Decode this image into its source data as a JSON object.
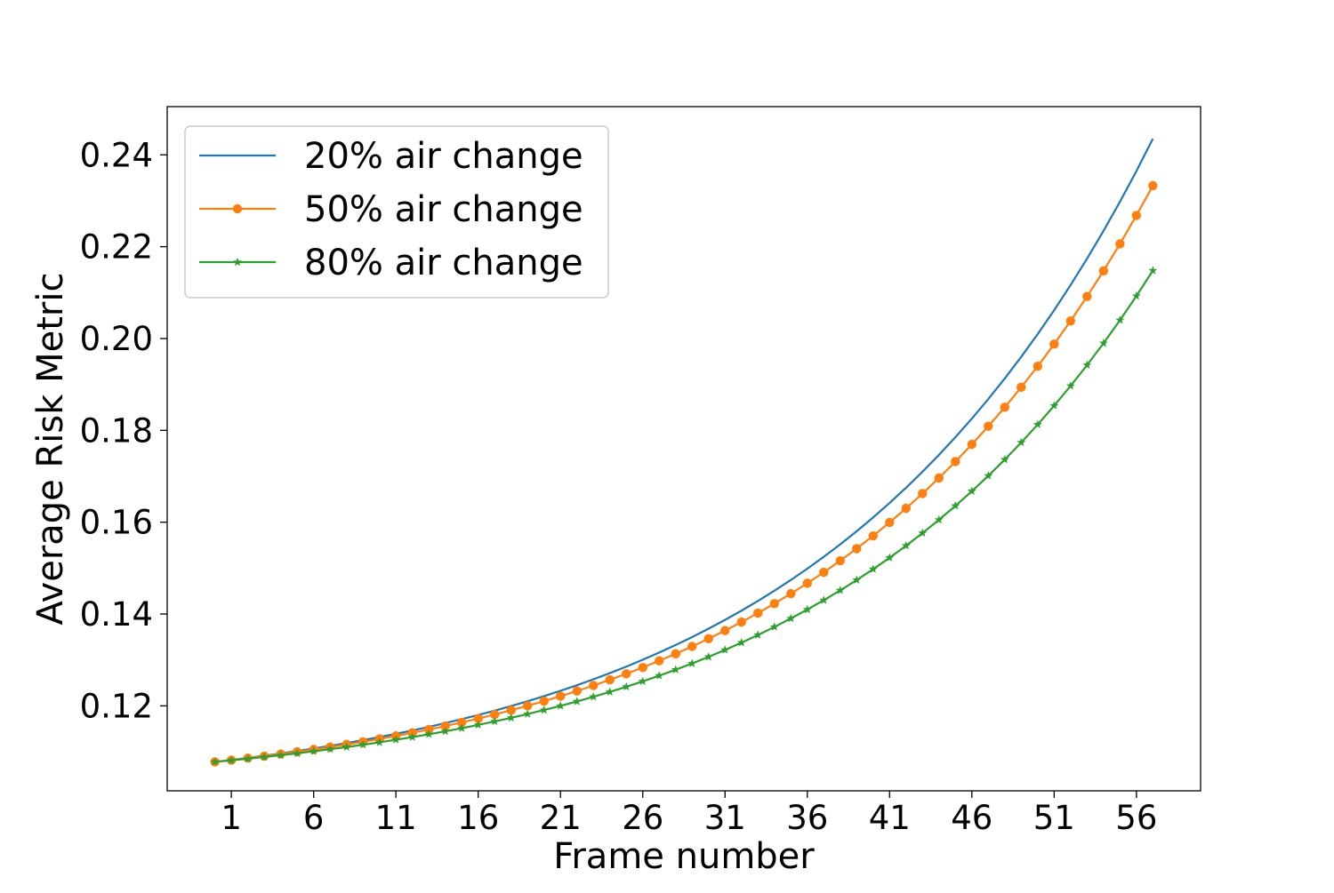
{
  "chart_data": {
    "type": "line",
    "title": "",
    "xlabel": "Frame number",
    "ylabel": "Average Risk Metric",
    "xlim": [
      -2.9,
      59.9
    ],
    "ylim": [
      0.1015,
      0.2505
    ],
    "xticks": [
      1,
      6,
      11,
      16,
      21,
      26,
      31,
      36,
      41,
      46,
      51,
      56
    ],
    "yticks": [
      0.12,
      0.14,
      0.16,
      0.18,
      0.2,
      0.22,
      0.24
    ],
    "ytick_labels": [
      "0.12",
      "0.14",
      "0.16",
      "0.18",
      "0.20",
      "0.22",
      "0.24"
    ],
    "grid": false,
    "legend_position": "top-left",
    "series": [
      {
        "name": "20% air change",
        "color": "#1f77b4",
        "marker": "none",
        "model": {
          "x0": 0,
          "x1": 57,
          "y0": 0.1078,
          "y1": 0.2435,
          "rate": 0.05
        }
      },
      {
        "name": "50% air change",
        "color": "#ff7f0e",
        "marker": "circle",
        "model": {
          "x0": 0,
          "x1": 57,
          "y0": 0.1078,
          "y1": 0.2333,
          "rate": 0.05
        }
      },
      {
        "name": "80% air change",
        "color": "#2ca02c",
        "marker": "star",
        "model": {
          "x0": 0,
          "x1": 57,
          "y0": 0.1078,
          "y1": 0.2148,
          "rate": 0.05
        }
      }
    ]
  }
}
